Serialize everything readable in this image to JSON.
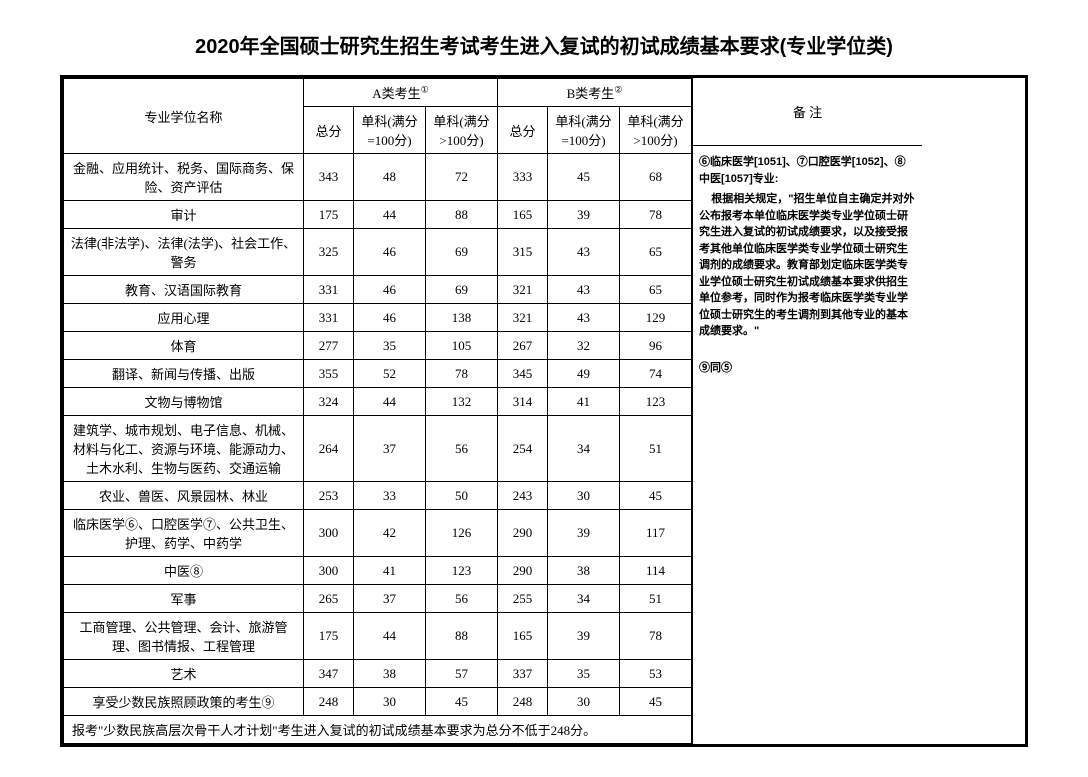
{
  "title": "2020年全国硕士研究生招生考试考生进入复试的初试成绩基本要求(专业学位类)",
  "headers": {
    "name": "专业学位名称",
    "groupA": "A类考生",
    "groupB": "B类考生",
    "supA": "①",
    "supB": "②",
    "total": "总分",
    "sub100": "单科(满分=100分)",
    "subOver100": "单科(满分>100分)",
    "notes": "备  注"
  },
  "rows": [
    {
      "name": "金融、应用统计、税务、国际商务、保险、资产评估",
      "a": [
        343,
        48,
        72
      ],
      "b": [
        333,
        45,
        68
      ]
    },
    {
      "name": "审计",
      "a": [
        175,
        44,
        88
      ],
      "b": [
        165,
        39,
        78
      ]
    },
    {
      "name": "法律(非法学)、法律(法学)、社会工作、警务",
      "a": [
        325,
        46,
        69
      ],
      "b": [
        315,
        43,
        65
      ]
    },
    {
      "name": "教育、汉语国际教育",
      "a": [
        331,
        46,
        69
      ],
      "b": [
        321,
        43,
        65
      ]
    },
    {
      "name": "应用心理",
      "a": [
        331,
        46,
        138
      ],
      "b": [
        321,
        43,
        129
      ]
    },
    {
      "name": "体育",
      "a": [
        277,
        35,
        105
      ],
      "b": [
        267,
        32,
        96
      ]
    },
    {
      "name": "翻译、新闻与传播、出版",
      "a": [
        355,
        52,
        78
      ],
      "b": [
        345,
        49,
        74
      ]
    },
    {
      "name": "文物与博物馆",
      "a": [
        324,
        44,
        132
      ],
      "b": [
        314,
        41,
        123
      ]
    },
    {
      "name": "建筑学、城市规划、电子信息、机械、材料与化工、资源与环境、能源动力、土木水利、生物与医药、交通运输",
      "a": [
        264,
        37,
        56
      ],
      "b": [
        254,
        34,
        51
      ]
    },
    {
      "name": "农业、兽医、风景园林、林业",
      "a": [
        253,
        33,
        50
      ],
      "b": [
        243,
        30,
        45
      ]
    },
    {
      "name": "临床医学⑥、口腔医学⑦、公共卫生、护理、药学、中药学",
      "a": [
        300,
        42,
        126
      ],
      "b": [
        290,
        39,
        117
      ]
    },
    {
      "name": "中医⑧",
      "a": [
        300,
        41,
        123
      ],
      "b": [
        290,
        38,
        114
      ]
    },
    {
      "name": "军事",
      "a": [
        265,
        37,
        56
      ],
      "b": [
        255,
        34,
        51
      ]
    },
    {
      "name": "工商管理、公共管理、会计、旅游管理、图书情报、工程管理",
      "a": [
        175,
        44,
        88
      ],
      "b": [
        165,
        39,
        78
      ]
    },
    {
      "name": "艺术",
      "a": [
        347,
        38,
        57
      ],
      "b": [
        337,
        35,
        53
      ]
    },
    {
      "name": "享受少数民族照顾政策的考生⑨",
      "a": [
        248,
        30,
        45
      ],
      "b": [
        248,
        30,
        45
      ]
    }
  ],
  "footer": "报考\"少数民族高层次骨干人才计划\"考生进入复试的初试成绩基本要求为总分不低于248分。",
  "notes": {
    "line1": "⑥临床医学[1051]、⑦口腔医学[1052]、⑧中医[1057]专业:",
    "line2": "根据相关规定，\"招生单位自主确定并对外公布报考本单位临床医学类专业学位硕士研究生进入复试的初试成绩要求，以及接受报考其他单位临床医学类专业学位硕士研究生调剂的成绩要求。教育部划定临床医学类专业学位硕士研究生初试成绩基本要求供招生单位参考，同时作为报考临床医学类专业学位硕士研究生的考生调剂到其他专业的基本成绩要求。\"",
    "line3": "⑨同⑤"
  }
}
